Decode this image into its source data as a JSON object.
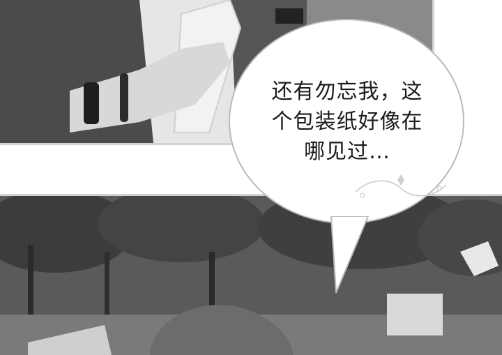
{
  "speech_bubble": {
    "lines": [
      "还有勿忘我，这",
      "个包装纸好像在",
      "哪见过…"
    ]
  },
  "colors": {
    "panel_border": "#d2d2d2",
    "bubble_border": "#b9b9b9",
    "text": "#1a1a1a"
  }
}
